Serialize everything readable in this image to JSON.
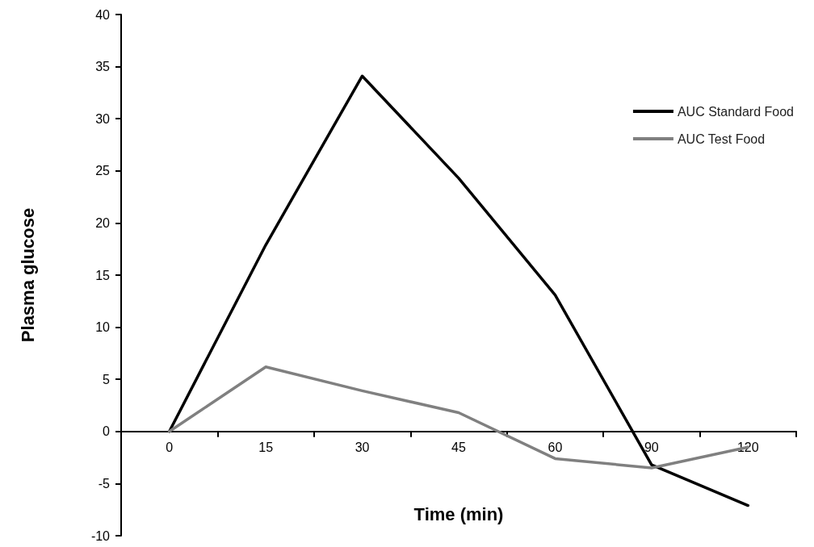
{
  "chart_data": {
    "type": "line",
    "xlabel": "Time (min)",
    "ylabel": "Plasma glucose",
    "categories": [
      "0",
      "15",
      "30",
      "45",
      "60",
      "90",
      "120"
    ],
    "series": [
      {
        "name": "AUC Standard Food",
        "color": "#000000",
        "values": [
          0,
          17.9,
          34.1,
          24.3,
          13.1,
          -3.2,
          -7.1
        ]
      },
      {
        "name": "AUC Test Food",
        "color": "#808080",
        "values": [
          0,
          6.2,
          3.9,
          1.8,
          -2.6,
          -3.5,
          -1.5
        ]
      }
    ],
    "ylim": [
      -10,
      40
    ],
    "yticks": [
      -10,
      -5,
      0,
      5,
      10,
      15,
      20,
      25,
      30,
      35,
      40
    ],
    "grid": false,
    "legend": "right",
    "marker": "none",
    "line_style": "solid"
  }
}
